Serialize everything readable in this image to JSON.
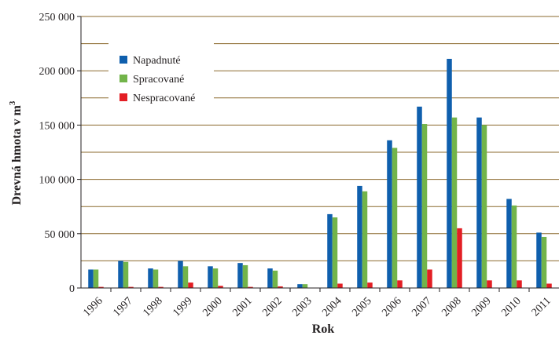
{
  "chart_data": {
    "type": "bar",
    "title": "",
    "xlabel": "Rok",
    "ylabel_main": "Drevná hmota v m",
    "ylabel_sup": "3",
    "ylim": [
      0,
      250000
    ],
    "yticks": [
      0,
      50000,
      100000,
      150000,
      200000,
      250000
    ],
    "ytick_labels": [
      "0",
      "50 000",
      "100 000",
      "150 000",
      "200 000",
      "250 000"
    ],
    "gridlines": [
      0,
      25000,
      50000,
      75000,
      100000,
      125000,
      150000,
      175000,
      200000,
      225000,
      250000
    ],
    "grid": true,
    "legend_position": "top-left",
    "categories": [
      "1996",
      "1997",
      "1998",
      "1999",
      "2000",
      "2001",
      "2002",
      "2003",
      "2004",
      "2005",
      "2006",
      "2007",
      "2008",
      "2009",
      "2010",
      "2011"
    ],
    "series": [
      {
        "name": "Napadnuté",
        "color": "#0f5fad",
        "values": [
          17000,
          25000,
          18000,
          25000,
          20000,
          23000,
          18000,
          3500,
          68000,
          94000,
          136000,
          167000,
          211000,
          157000,
          82000,
          51000
        ]
      },
      {
        "name": "Spracované",
        "color": "#72b44a",
        "values": [
          17000,
          24000,
          17000,
          20000,
          18000,
          21000,
          16000,
          3500,
          65000,
          89000,
          129000,
          151000,
          157000,
          150000,
          76000,
          47000
        ]
      },
      {
        "name": "Nespracované",
        "color": "#e31e24",
        "values": [
          1000,
          1000,
          1000,
          5000,
          2000,
          1000,
          1500,
          0,
          4000,
          5000,
          7000,
          17000,
          55000,
          7000,
          7000,
          4000
        ]
      }
    ],
    "colors": {
      "grid": "#8b6a2e",
      "axis": "#231f20",
      "text": "#231f20"
    }
  }
}
